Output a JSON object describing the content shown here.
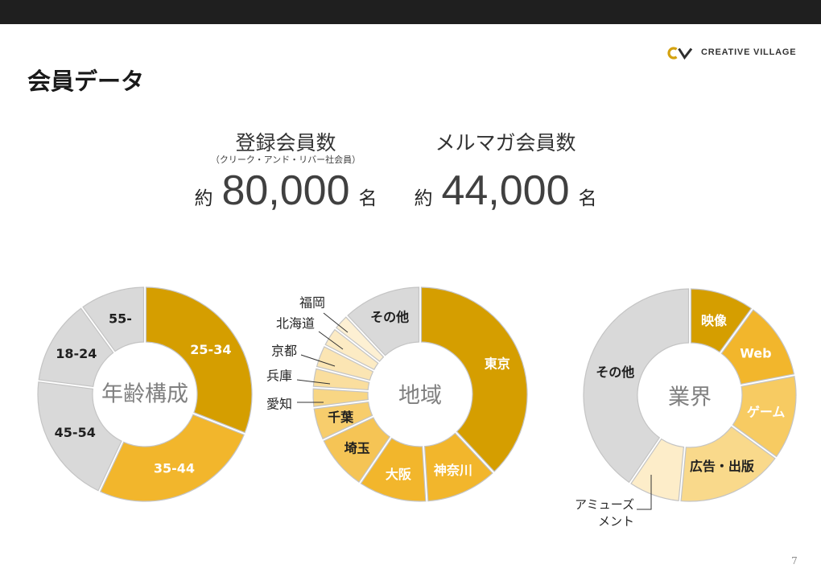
{
  "header": {
    "logo_text": "CREATIVE VILLAGE"
  },
  "title": "会員データ",
  "stats": [
    {
      "label": "登録会員数",
      "note": "（クリーク・アンド・リバー社会員）",
      "prefix": "約",
      "value": "80,000",
      "unit": "名"
    },
    {
      "label": "メルマガ会員数",
      "prefix": "約",
      "value": "44,000",
      "unit": "名"
    }
  ],
  "page_number": "7",
  "colors": {
    "top_bar": "#1F1F1F",
    "logo_gold": "#D4A20F",
    "logo_dark": "#2E2E2E",
    "slice_outline": "#C4C4C4"
  },
  "icons": {
    "logo": "creative-village-logo-icon"
  },
  "chart_data": [
    {
      "type": "pie",
      "donut": true,
      "title": "年齢構成",
      "slices": [
        {
          "label": "25-34",
          "value": 31,
          "color": "#D59E00",
          "label_color": "#FFFFFF"
        },
        {
          "label": "35-44",
          "value": 26,
          "color": "#F2B62C",
          "label_color": "#FFFFFF"
        },
        {
          "label": "45-54",
          "value": 20,
          "color": "#D9D9D9",
          "label_color": "#1F1F1F"
        },
        {
          "label": "18-24",
          "value": 13,
          "color": "#D9D9D9",
          "label_color": "#1F1F1F"
        },
        {
          "label": "55-",
          "value": 10,
          "color": "#D9D9D9",
          "label_color": "#1F1F1F"
        }
      ]
    },
    {
      "type": "pie",
      "donut": true,
      "title": "地域",
      "slices": [
        {
          "label": "東京",
          "value": 38,
          "color": "#D59E00",
          "label_color": "#FFFFFF"
        },
        {
          "label": "神奈川",
          "value": 11,
          "color": "#F2B62C",
          "label_color": "#FFFFFF"
        },
        {
          "label": "大阪",
          "value": 10.5,
          "color": "#F2B62C",
          "label_color": "#FFFFFF"
        },
        {
          "label": "埼玉",
          "value": 8.5,
          "color": "#F5C455",
          "label_color": "#1F1F1F"
        },
        {
          "label": "千葉",
          "value": 5,
          "color": "#F7CD6C",
          "label_color": "#1F1F1F"
        },
        {
          "label": "愛知",
          "value": 3,
          "color": "#F8D684",
          "label_color": "#1F1F1F",
          "callout": true
        },
        {
          "label": "兵庫",
          "value": 3,
          "color": "#FADE9E",
          "label_color": "#1F1F1F",
          "callout": true
        },
        {
          "label": "京都",
          "value": 3.5,
          "color": "#FBE5B3",
          "label_color": "#1F1F1F",
          "callout": true
        },
        {
          "label": "北海道",
          "value": 3,
          "color": "#FCEBC4",
          "label_color": "#1F1F1F",
          "callout": true
        },
        {
          "label": "福岡",
          "value": 2.5,
          "color": "#FDF0D3",
          "label_color": "#1F1F1F",
          "callout": true
        },
        {
          "label": "その他",
          "value": 12,
          "color": "#D9D9D9",
          "label_color": "#1F1F1F"
        }
      ]
    },
    {
      "type": "pie",
      "donut": true,
      "title": "業界",
      "slices": [
        {
          "label": "映像",
          "value": 10,
          "color": "#D59E00",
          "label_color": "#FFFFFF"
        },
        {
          "label": "Web",
          "value": 12,
          "color": "#F2B62C",
          "label_color": "#FFFFFF"
        },
        {
          "label": "ゲーム",
          "value": 13,
          "color": "#F7CB62",
          "label_color": "#FFFFFF"
        },
        {
          "label": "広告・出版",
          "value": 16.5,
          "color": "#F9D98B",
          "label_color": "#1F1F1F"
        },
        {
          "label": "アミューズメント",
          "value": 8,
          "color": "#FDEDC9",
          "label_color": "#1F1F1F",
          "callout": true
        },
        {
          "label": "その他",
          "value": 40.5,
          "color": "#D9D9D9",
          "label_color": "#1F1F1F"
        }
      ]
    }
  ]
}
